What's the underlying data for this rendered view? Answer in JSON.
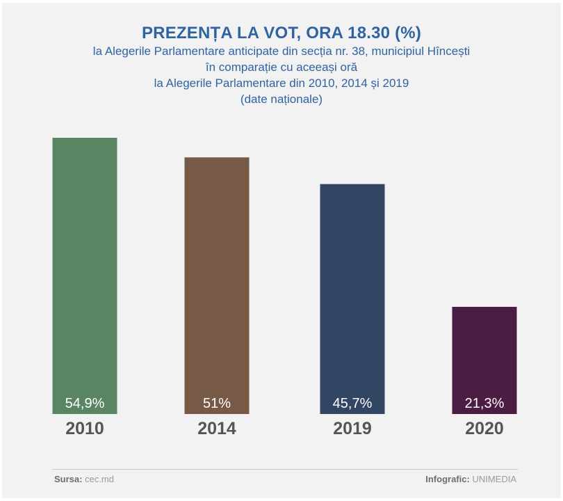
{
  "title": "PREZENȚA LA VOT, ORA 18.30 (%)",
  "subtitle_lines": [
    "la Alegerile Parlamentare anticipate din secția nr. 38, municipiul Hîncești",
    "în comparație cu aceeași oră",
    "la Alegerile Parlamentare din 2010, 2014 și 2019",
    "(date naționale)"
  ],
  "chart_data": {
    "type": "bar",
    "categories": [
      "2010",
      "2014",
      "2019",
      "2020"
    ],
    "values": [
      54.9,
      51,
      45.7,
      21.3
    ],
    "value_labels": [
      "54,9%",
      "51%",
      "45,7%",
      "21,3%"
    ],
    "colors": [
      "#5a8563",
      "#765a46",
      "#324664",
      "#4c1d42"
    ],
    "ylim": [
      0,
      54.9
    ],
    "grid": false
  },
  "footer": {
    "source_label": "Sursa:",
    "source_value": "cec.md",
    "credit_label": "Infografic:",
    "credit_value": "UNIMEDIA"
  }
}
